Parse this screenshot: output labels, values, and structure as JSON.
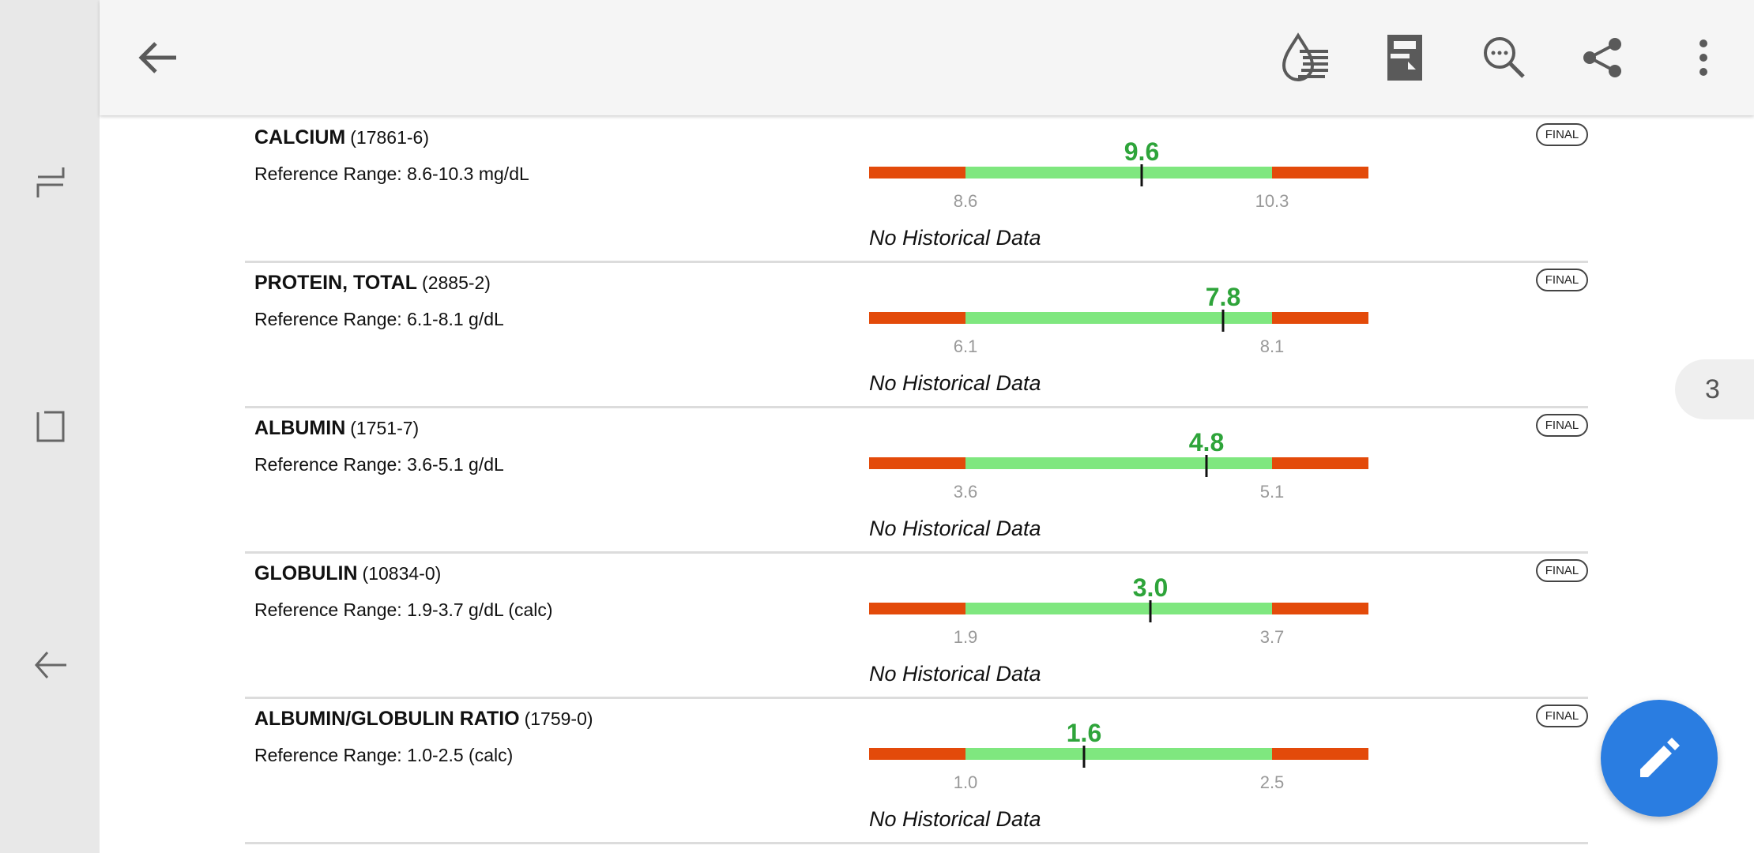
{
  "toolbar": {
    "back_icon": "arrow-left-icon",
    "actions": [
      "blood-drop-list-icon",
      "pdf-document-icon",
      "search-comment-icon",
      "share-icon",
      "more-vertical-icon"
    ]
  },
  "nav_bar": {
    "icons": [
      "recent-apps-icon",
      "home-icon",
      "back-icon"
    ]
  },
  "colors": {
    "out_of_range": "#e34a0a",
    "in_range": "#7fe77f",
    "value": "#2ea43a",
    "fab": "#2a7de1"
  },
  "results": [
    {
      "name": "CALCIUM",
      "code": "(17861-6)",
      "reference": "Reference Range: 8.6-10.3 mg/dL",
      "value": "9.6",
      "low": "8.6",
      "high": "10.3",
      "history": "No Historical Data",
      "status": "FINAL"
    },
    {
      "name": "PROTEIN, TOTAL",
      "code": "(2885-2)",
      "reference": "Reference Range: 6.1-8.1 g/dL",
      "value": "7.8",
      "low": "6.1",
      "high": "8.1",
      "history": "No Historical Data",
      "status": "FINAL"
    },
    {
      "name": "ALBUMIN",
      "code": "(1751-7)",
      "reference": "Reference Range: 3.6-5.1 g/dL",
      "value": "4.8",
      "low": "3.6",
      "high": "5.1",
      "history": "No Historical Data",
      "status": "FINAL"
    },
    {
      "name": "GLOBULIN",
      "code": "(10834-0)",
      "reference": "Reference Range: 1.9-3.7 g/dL (calc)",
      "value": "3.0",
      "low": "1.9",
      "high": "3.7",
      "history": "No Historical Data",
      "status": "FINAL"
    },
    {
      "name": "ALBUMIN/GLOBULIN RATIO",
      "code": "(1759-0)",
      "reference": "Reference Range: 1.0-2.5 (calc)",
      "value": "1.6",
      "low": "1.0",
      "high": "2.5",
      "history": "No Historical Data",
      "status": "FINAL"
    }
  ],
  "page_indicator": "3",
  "fab": {
    "icon": "pencil-icon"
  }
}
